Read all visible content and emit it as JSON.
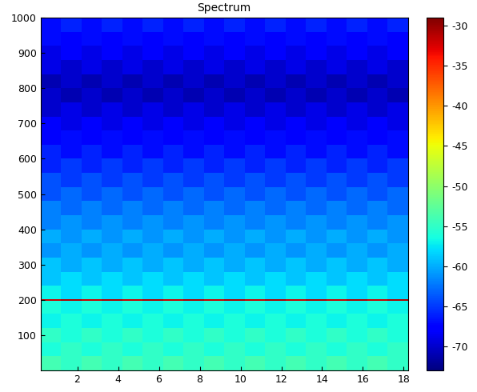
{
  "chart_data": {
    "type": "heatmap",
    "title": "Spectrum",
    "x_edges": [
      0.2,
      1.2,
      2.2,
      3.2,
      4.2,
      5.2,
      6.2,
      7.2,
      8.2,
      9.2,
      10.2,
      11.2,
      12.2,
      13.2,
      14.2,
      15.2,
      16.2,
      17.2,
      18.2
    ],
    "y_edges": [
      0,
      40,
      80,
      120,
      160,
      198,
      202,
      240,
      280,
      320,
      360,
      400,
      440,
      480,
      520,
      560,
      600,
      640,
      680,
      720,
      760,
      800,
      840,
      880,
      920,
      960,
      1000
    ],
    "cells": [
      [
        -54,
        -55,
        -54,
        -55,
        -54,
        -55,
        -54,
        -55,
        -54,
        -55,
        -54,
        -55,
        -54,
        -55,
        -54,
        -55,
        -54,
        -55
      ],
      [
        -56,
        -55,
        -56,
        -55,
        -56,
        -55,
        -56,
        -55,
        -56,
        -55,
        -56,
        -55,
        -56,
        -55,
        -56,
        -55,
        -56,
        -55
      ],
      [
        -55,
        -56,
        -55,
        -56,
        -55,
        -56,
        -55,
        -56,
        -55,
        -56,
        -55,
        -56,
        -55,
        -56,
        -55,
        -56,
        -55,
        -56
      ],
      [
        -57,
        -56,
        -57,
        -56,
        -57,
        -56,
        -57,
        -56,
        -57,
        -56,
        -57,
        -56,
        -57,
        -56,
        -57,
        -56,
        -57,
        -56
      ],
      [
        -56,
        -57,
        -56,
        -57,
        -56,
        -57,
        -56,
        -57,
        -56,
        -57,
        -56,
        -57,
        -56,
        -57,
        -56,
        -57,
        -56,
        -57
      ],
      [
        -32,
        -31,
        -32,
        -31,
        -32,
        -31,
        -32,
        -31,
        -32,
        -31,
        -32,
        -31,
        -32,
        -31,
        -32,
        -31,
        -32,
        -31
      ],
      [
        -57,
        -58,
        -57,
        -58,
        -57,
        -58,
        -57,
        -58,
        -57,
        -58,
        -57,
        -58,
        -57,
        -58,
        -57,
        -58,
        -57,
        -58
      ],
      [
        -59,
        -58,
        -59,
        -58,
        -59,
        -58,
        -59,
        -58,
        -59,
        -58,
        -59,
        -58,
        -59,
        -58,
        -59,
        -58,
        -59,
        -58
      ],
      [
        -59,
        -60,
        -59,
        -60,
        -59,
        -60,
        -59,
        -60,
        -59,
        -60,
        -59,
        -60,
        -59,
        -60,
        -59,
        -60,
        -59,
        -60
      ],
      [
        -61,
        -60,
        -61,
        -60,
        -61,
        -60,
        -61,
        -60,
        -61,
        -60,
        -61,
        -60,
        -61,
        -60,
        -61,
        -60,
        -61,
        -60
      ],
      [
        -60,
        -61,
        -60,
        -61,
        -60,
        -61,
        -60,
        -61,
        -60,
        -61,
        -60,
        -61,
        -60,
        -61,
        -60,
        -61,
        -60,
        -61
      ],
      [
        -62,
        -61,
        -62,
        -61,
        -62,
        -61,
        -62,
        -61,
        -62,
        -61,
        -62,
        -61,
        -62,
        -61,
        -62,
        -61,
        -62,
        -61
      ],
      [
        -62,
        -63,
        -62,
        -63,
        -62,
        -63,
        -62,
        -63,
        -62,
        -63,
        -62,
        -63,
        -62,
        -63,
        -62,
        -63,
        -62,
        -63
      ],
      [
        -64,
        -63,
        -64,
        -63,
        -64,
        -63,
        -64,
        -63,
        -64,
        -63,
        -64,
        -63,
        -64,
        -63,
        -64,
        -63,
        -64,
        -63
      ],
      [
        -64,
        -65,
        -64,
        -65,
        -64,
        -65,
        -64,
        -65,
        -64,
        -65,
        -64,
        -65,
        -64,
        -65,
        -64,
        -65,
        -64,
        -65
      ],
      [
        -66,
        -65,
        -66,
        -65,
        -66,
        -65,
        -66,
        -65,
        -66,
        -65,
        -66,
        -65,
        -66,
        -65,
        -66,
        -65,
        -66,
        -65
      ],
      [
        -66,
        -67,
        -66,
        -67,
        -66,
        -67,
        -66,
        -67,
        -66,
        -67,
        -66,
        -67,
        -66,
        -67,
        -66,
        -67,
        -66,
        -67
      ],
      [
        -68,
        -67,
        -68,
        -67,
        -68,
        -67,
        -68,
        -67,
        -68,
        -67,
        -68,
        -67,
        -68,
        -67,
        -68,
        -67,
        -68,
        -67
      ],
      [
        -68,
        -69,
        -68,
        -69,
        -68,
        -69,
        -68,
        -69,
        -68,
        -69,
        -68,
        -69,
        -68,
        -69,
        -68,
        -69,
        -68,
        -69
      ],
      [
        -70,
        -69,
        -70,
        -69,
        -70,
        -69,
        -70,
        -69,
        -70,
        -69,
        -70,
        -69,
        -70,
        -69,
        -70,
        -69,
        -70,
        -69
      ],
      [
        -70,
        -71,
        -70,
        -71,
        -70,
        -71,
        -70,
        -71,
        -70,
        -71,
        -70,
        -71,
        -70,
        -71,
        -70,
        -71,
        -70,
        -71
      ],
      [
        -71,
        -70,
        -71,
        -70,
        -71,
        -70,
        -71,
        -70,
        -71,
        -70,
        -71,
        -70,
        -71,
        -70,
        -71,
        -70,
        -71,
        -70
      ],
      [
        -69,
        -70,
        -69,
        -70,
        -69,
        -70,
        -69,
        -70,
        -69,
        -70,
        -69,
        -70,
        -69,
        -70,
        -69,
        -70,
        -69,
        -70
      ],
      [
        -69,
        -68,
        -69,
        -68,
        -69,
        -68,
        -69,
        -68,
        -69,
        -68,
        -69,
        -68,
        -69,
        -68,
        -69,
        -68,
        -69,
        -68
      ],
      [
        -67,
        -68,
        -67,
        -68,
        -67,
        -68,
        -67,
        -68,
        -67,
        -68,
        -67,
        -68,
        -67,
        -68,
        -67,
        -68,
        -67,
        -68
      ],
      [
        -67,
        -66,
        -67,
        -66,
        -67,
        -66,
        -67,
        -66,
        -67,
        -66,
        -67,
        -66,
        -67,
        -66,
        -67,
        -66,
        -67,
        -66
      ]
    ],
    "xlim": [
      0.2,
      18.2
    ],
    "xticks": [
      2,
      4,
      6,
      8,
      10,
      12,
      14,
      16,
      18
    ],
    "ylim": [
      0,
      1000
    ],
    "yticks": [
      100,
      200,
      300,
      400,
      500,
      600,
      700,
      800,
      900,
      1000
    ],
    "colorbar_range": [
      -73,
      -29
    ],
    "colorbar_ticks": [
      -70,
      -65,
      -60,
      -55,
      -50,
      -45,
      -40,
      -35,
      -30
    ]
  }
}
